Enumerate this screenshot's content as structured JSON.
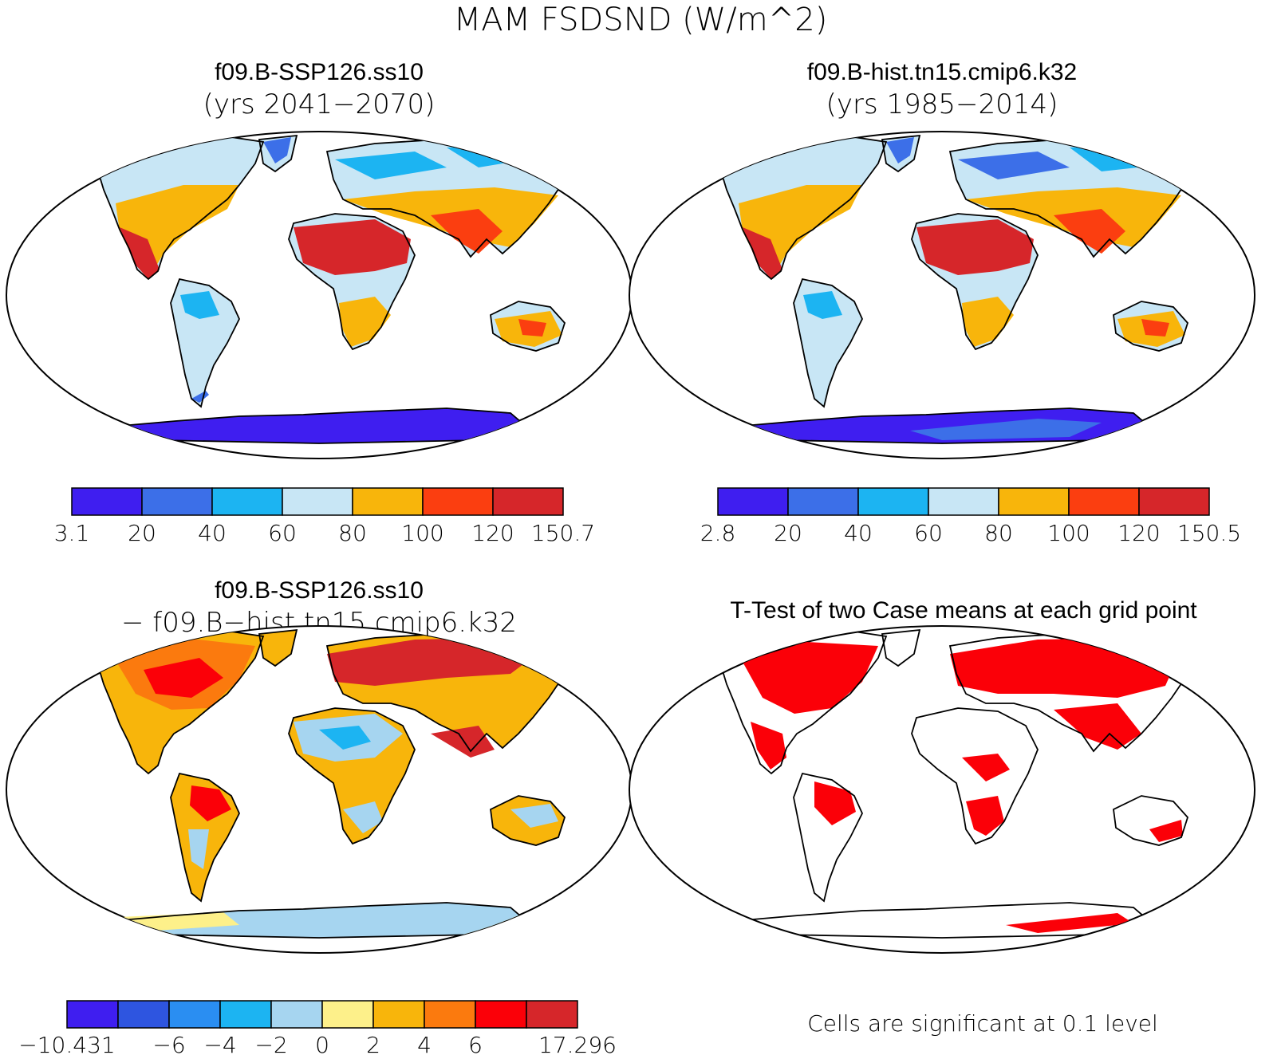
{
  "main_title": "MAM FSDSND (W/m^2)",
  "panels": [
    {
      "id": "case1",
      "title": "f09.B-SSP126.ss10",
      "subtitle": "(yrs 2041−2070)",
      "colorbar": {
        "colors": [
          "#3f1ef0",
          "#3c6fe8",
          "#1cb4f2",
          "#c8e6f5",
          "#f8b50b",
          "#fb3e10",
          "#d6262a"
        ],
        "labels": [
          "3.1",
          "20",
          "40",
          "60",
          "80",
          "100",
          "120",
          "150.7"
        ]
      }
    },
    {
      "id": "case2",
      "title": "f09.B-hist.tn15.cmip6.k32",
      "subtitle": "(yrs 1985−2014)",
      "colorbar": {
        "colors": [
          "#3f1ef0",
          "#3c6fe8",
          "#1cb4f2",
          "#c8e6f5",
          "#f8b50b",
          "#fb3e10",
          "#d6262a"
        ],
        "labels": [
          "2.8",
          "20",
          "40",
          "60",
          "80",
          "100",
          "120",
          "150.5"
        ]
      }
    },
    {
      "id": "diff",
      "title": "f09.B-SSP126.ss10",
      "subtitle": "− f09.B−hist.tn15.cmip6.k32",
      "colorbar": {
        "colors": [
          "#3f1ef0",
          "#2e55e0",
          "#2a8ef2",
          "#1cb4f2",
          "#a6d5f0",
          "#fdf08a",
          "#f8b50b",
          "#fb7a0e",
          "#fb0008",
          "#d6262a"
        ],
        "labels": [
          "−10.431",
          "",
          "−6",
          "−4",
          "−2",
          "0",
          "2",
          "4",
          "6",
          "",
          "17.296"
        ]
      }
    },
    {
      "id": "ttest",
      "title": "T-Test of two Case means at each grid point",
      "note": "Cells are significant at 0.1 level",
      "sig_color": "#fb0008"
    }
  ]
}
